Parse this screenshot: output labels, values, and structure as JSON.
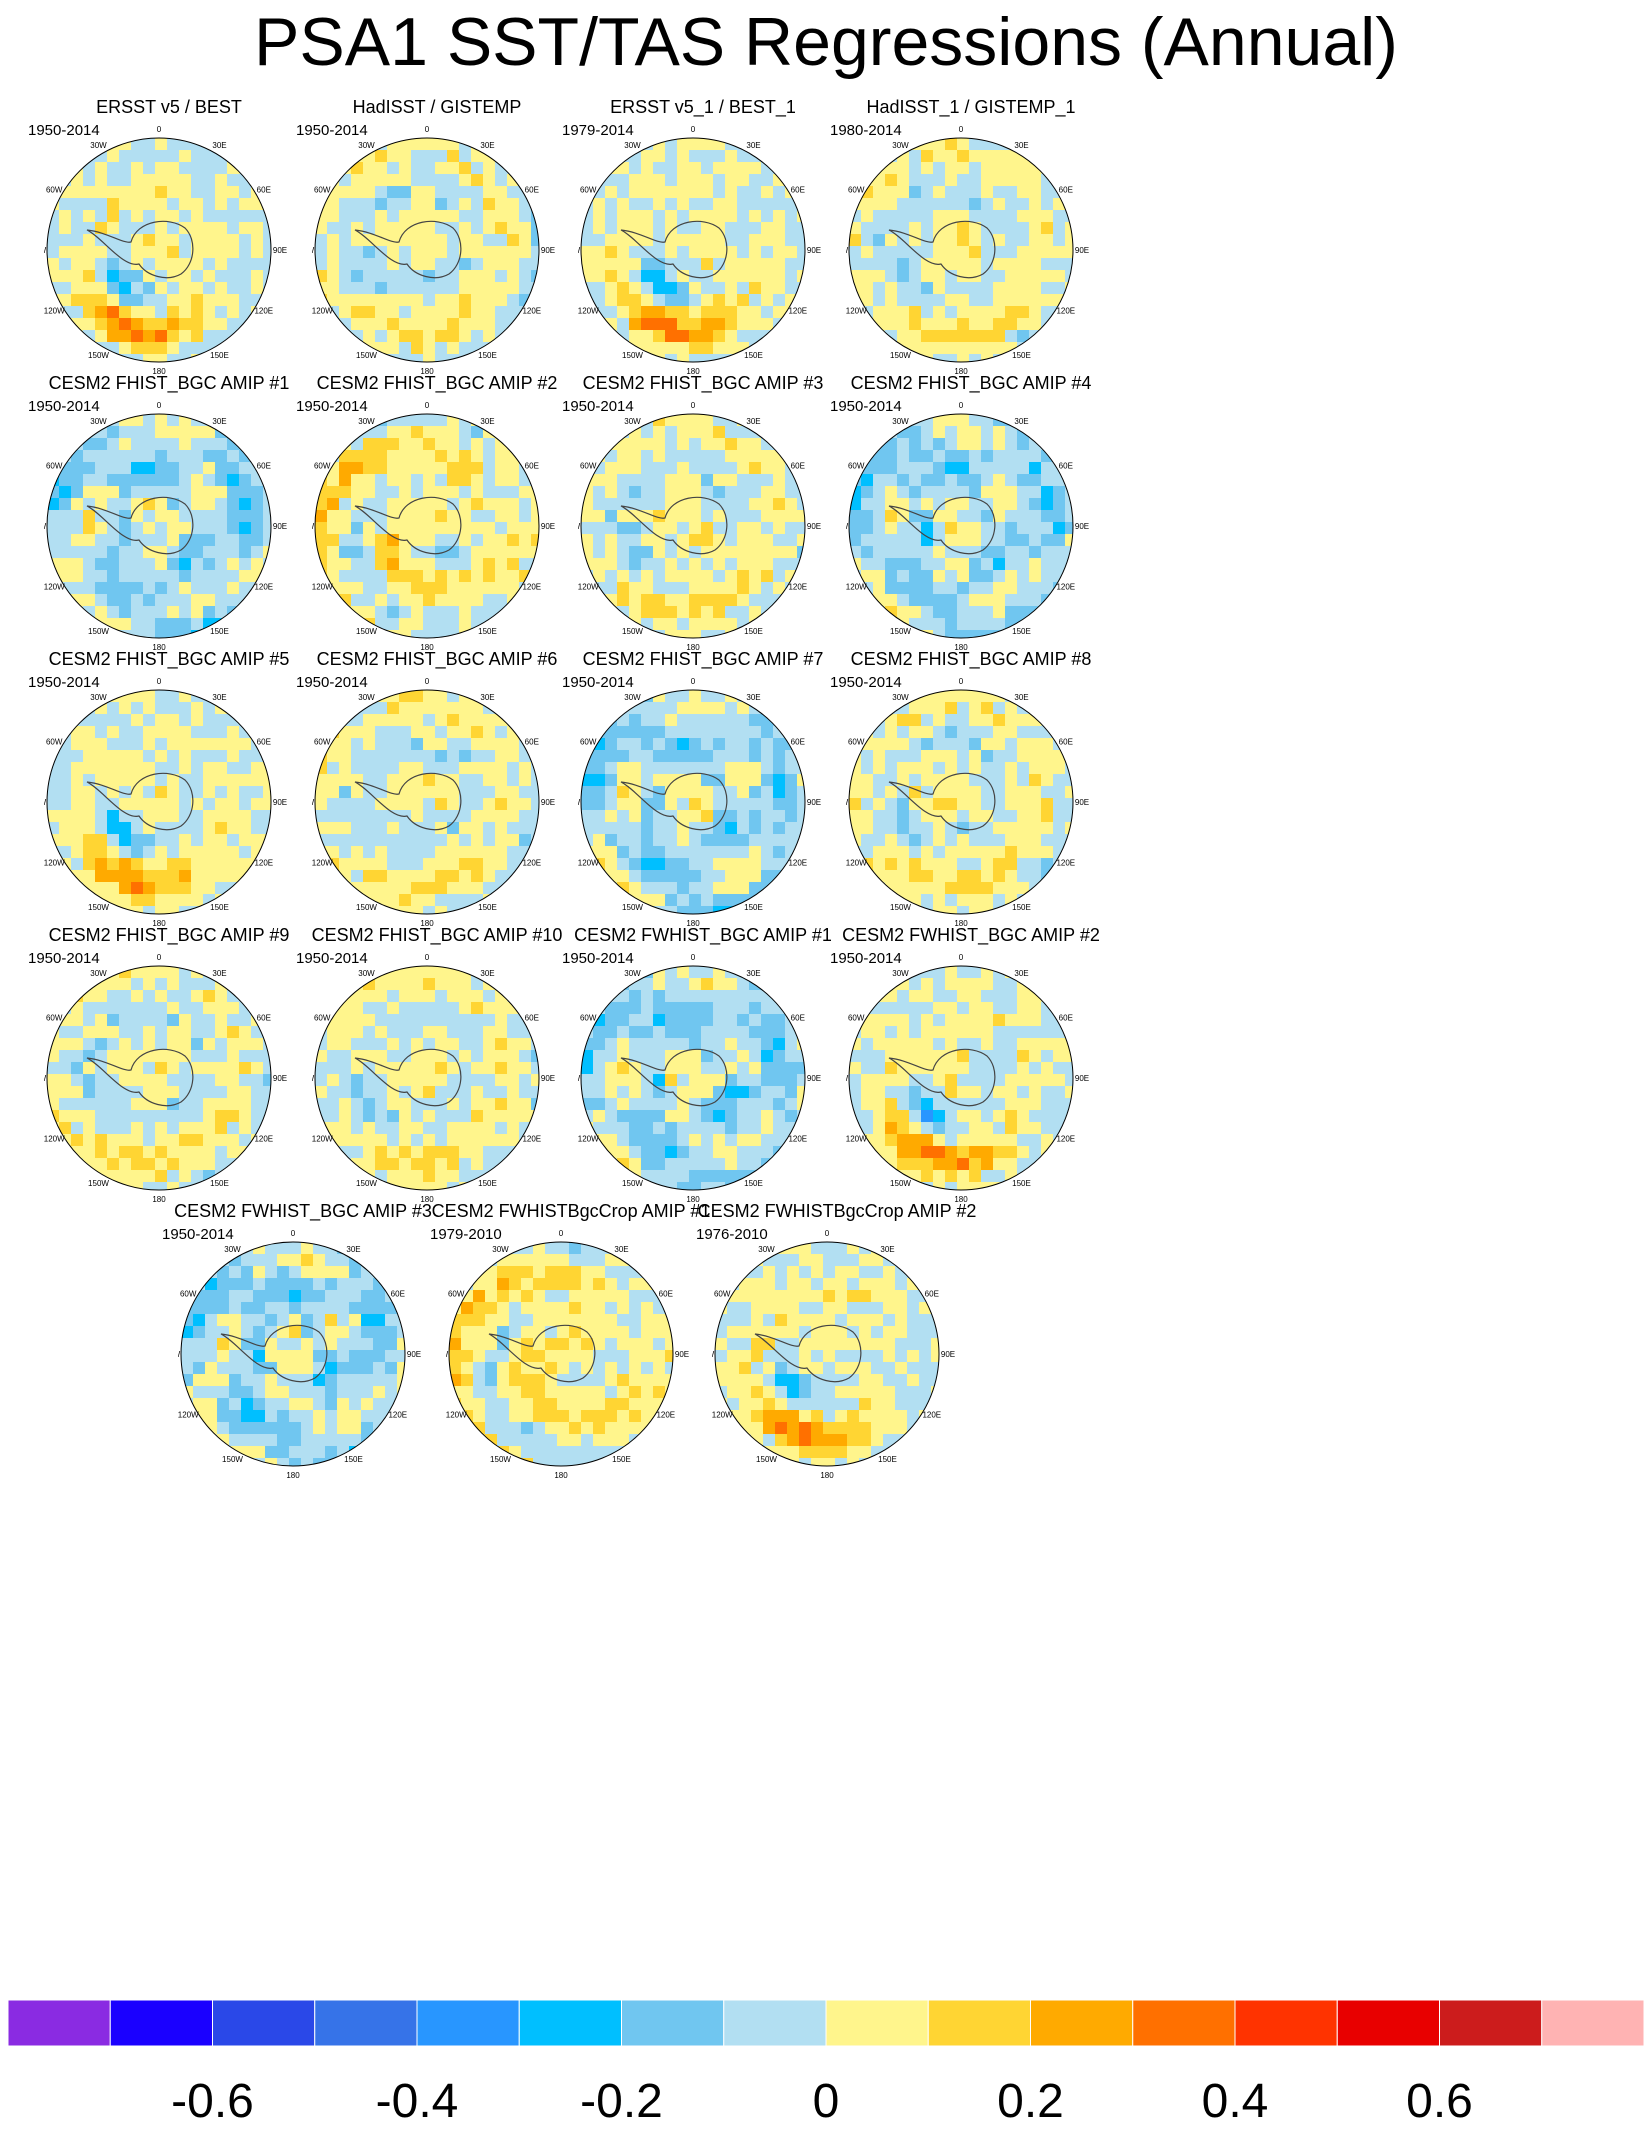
{
  "title": "PSA1 SST/TAS Regressions (Annual)",
  "chart_data": {
    "type": "heatmap",
    "description_projection": "south polar stereographic",
    "longitude_labels": [
      "0",
      "30E",
      "60E",
      "90E",
      "120E",
      "150E",
      "180",
      "150W",
      "120W",
      "90W",
      "60W",
      "30W"
    ],
    "colorbar": {
      "colors": [
        "#8a2be2",
        "#1a00ff",
        "#2a48e8",
        "#3673e8",
        "#2896ff",
        "#00bfff",
        "#70c6f0",
        "#b2dff2",
        "#fff58c",
        "#ffd533",
        "#ffaa00",
        "#ff7000",
        "#ff3300",
        "#e80000",
        "#cc1c1c",
        "#ffb3b3"
      ],
      "tick_labels": [
        "-0.6",
        "-0.4",
        "-0.2",
        "0",
        "0.2",
        "0.4",
        "0.6"
      ],
      "tick_values": [
        -0.6,
        -0.4,
        -0.2,
        0,
        0.2,
        0.4,
        0.6
      ],
      "range": [
        -0.8,
        0.8
      ]
    },
    "panels": [
      {
        "title": "ERSST v5 / BEST",
        "period": "1950-2014",
        "pattern": "psa_positive"
      },
      {
        "title": "HadISST / GISTEMP",
        "period": "1950-2014",
        "pattern": "psa_weak"
      },
      {
        "title": "ERSST v5_1 / BEST_1",
        "period": "1979-2014",
        "pattern": "psa_positive"
      },
      {
        "title": "HadISST_1 / GISTEMP_1",
        "period": "1980-2014",
        "pattern": "psa_weak"
      },
      {
        "title": "CESM2 FHIST_BGC AMIP #1",
        "period": "1950-2014",
        "pattern": "noisy_cool"
      },
      {
        "title": "CESM2 FHIST_BGC AMIP #2",
        "period": "1950-2014",
        "pattern": "noisy_warm"
      },
      {
        "title": "CESM2 FHIST_BGC AMIP #3",
        "period": "1950-2014",
        "pattern": "psa_weak"
      },
      {
        "title": "CESM2 FHIST_BGC AMIP #4",
        "period": "1950-2014",
        "pattern": "noisy_cool"
      },
      {
        "title": "CESM2 FHIST_BGC AMIP #5",
        "period": "1950-2014",
        "pattern": "psa_positive"
      },
      {
        "title": "CESM2 FHIST_BGC AMIP #6",
        "period": "1950-2014",
        "pattern": "psa_weak"
      },
      {
        "title": "CESM2 FHIST_BGC AMIP #7",
        "period": "1950-2014",
        "pattern": "noisy_cool"
      },
      {
        "title": "CESM2 FHIST_BGC AMIP #8",
        "period": "1950-2014",
        "pattern": "psa_weak"
      },
      {
        "title": "CESM2 FHIST_BGC AMIP #9",
        "period": "1950-2014",
        "pattern": "psa_weak"
      },
      {
        "title": "CESM2 FHIST_BGC AMIP #10",
        "period": "1950-2014",
        "pattern": "psa_weak"
      },
      {
        "title": "CESM2 FWHIST_BGC AMIP #1",
        "period": "1950-2014",
        "pattern": "noisy_cool"
      },
      {
        "title": "CESM2 FWHIST_BGC AMIP #2",
        "period": "1950-2014",
        "pattern": "psa_positive"
      },
      {
        "title": "CESM2 FWHIST_BGC AMIP #3",
        "period": "1950-2014",
        "pattern": "noisy_cool"
      },
      {
        "title": "CESM2 FWHISTBgcCrop AMIP #1",
        "period": "1979-2010",
        "pattern": "noisy_warm"
      },
      {
        "title": "CESM2 FWHISTBgcCrop AMIP #2",
        "period": "1976-2010",
        "pattern": "psa_positive"
      }
    ]
  }
}
